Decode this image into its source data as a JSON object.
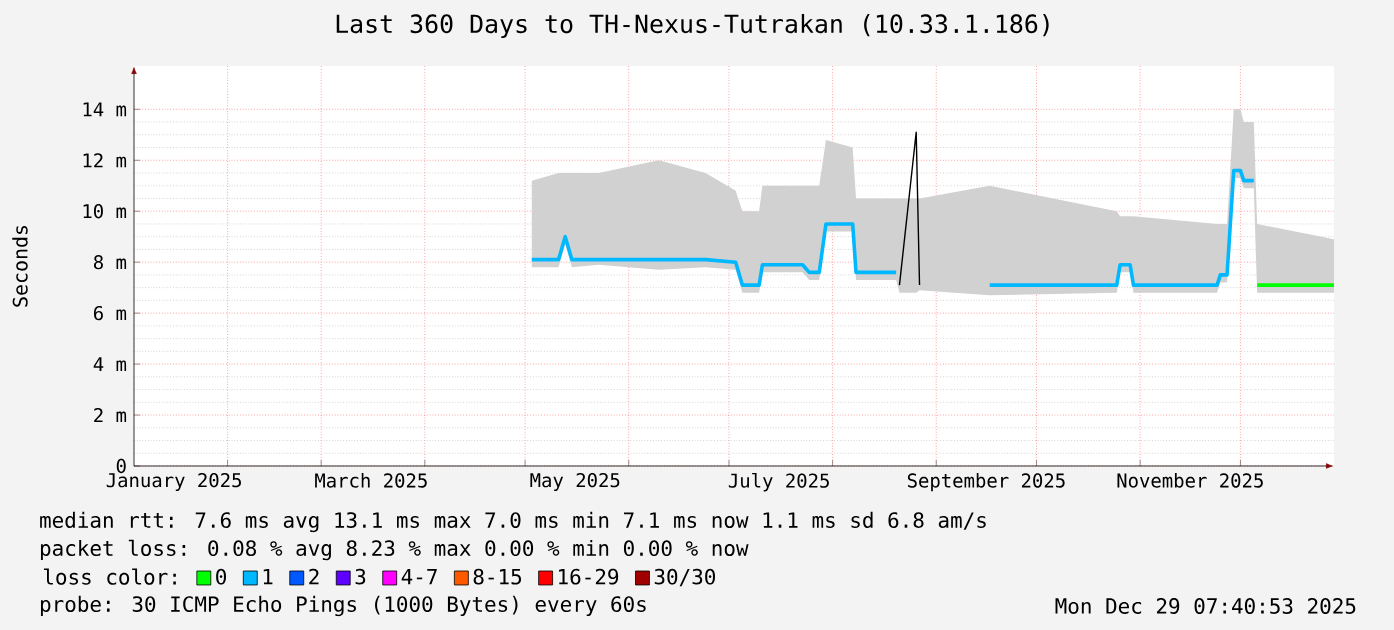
{
  "chart_data": {
    "type": "line",
    "title": "Last 360 Days to TH-Nexus-Tutrakan (10.33.1.186)",
    "ylabel": "Seconds",
    "x": [
      "2025-05-03",
      "2025-05-11",
      "2025-05-13",
      "2025-05-15",
      "2025-05-23",
      "2025-06-10",
      "2025-06-24",
      "2025-07-03",
      "2025-07-05",
      "2025-07-10",
      "2025-07-11",
      "2025-07-23",
      "2025-07-25",
      "2025-07-28",
      "2025-07-30",
      "2025-08-07",
      "2025-08-08",
      "2025-08-20",
      "2025-08-21",
      "2025-08-26",
      "2025-08-27",
      "2025-09-17",
      "2025-10-25",
      "2025-10-26",
      "2025-10-29",
      "2025-10-30",
      "2025-11-24",
      "2025-11-25",
      "2025-11-27",
      "2025-11-29",
      "2025-12-01",
      "2025-12-02",
      "2025-12-05",
      "2025-12-06",
      "2025-12-29"
    ],
    "xlim": [
      "2025-01-04",
      "2025-12-29"
    ],
    "ylim": [
      0,
      15.7
    ],
    "xticks": [
      {
        "value": "2025-02-01",
        "label": null
      },
      {
        "value": "2025-03-01",
        "label": null
      },
      {
        "value": "2025-04-01",
        "label": null
      },
      {
        "value": "2025-05-01",
        "label": null
      },
      {
        "value": "2025-06-01",
        "label": null
      },
      {
        "value": "2025-07-01",
        "label": null
      },
      {
        "value": "2025-08-01",
        "label": null
      },
      {
        "value": "2025-09-01",
        "label": null
      },
      {
        "value": "2025-10-01",
        "label": null
      },
      {
        "value": "2025-11-01",
        "label": null
      },
      {
        "value": "2025-12-01",
        "label": null
      },
      {
        "value": "2025-01-16",
        "label": "January 2025"
      },
      {
        "value": "2025-03-16",
        "label": "March 2025"
      },
      {
        "value": "2025-05-16",
        "label": "May 2025"
      },
      {
        "value": "2025-07-16",
        "label": "July 2025"
      },
      {
        "value": "2025-09-16",
        "label": "September 2025"
      },
      {
        "value": "2025-11-16",
        "label": "November 2025"
      }
    ],
    "yticks": [
      0,
      {
        "value": 2,
        "label": "2 m"
      },
      {
        "value": 4,
        "label": "4 m"
      },
      {
        "value": 6,
        "label": "6 m"
      },
      {
        "value": 8,
        "label": "8 m"
      },
      {
        "value": 10,
        "label": "10 m"
      },
      {
        "value": 12,
        "label": "12 m"
      },
      {
        "value": 14,
        "label": "14 m"
      }
    ],
    "grid": true,
    "legend": "bottom",
    "legend_title": "loss color:",
    "series": [
      {
        "color": "#000000",
        "values": [
          null,
          null,
          null,
          null,
          null,
          null,
          null,
          null,
          null,
          null,
          null,
          null,
          null,
          null,
          null,
          null,
          null,
          null,
          7.1,
          13.1,
          7.1,
          null,
          null,
          null,
          null,
          null,
          null,
          null,
          null,
          null,
          null,
          null,
          null,
          null,
          null
        ],
        "lower": [
          7.8,
          7.8,
          8.7,
          7.8,
          7.9,
          7.7,
          7.8,
          7.7,
          6.8,
          6.8,
          7.6,
          7.6,
          7.3,
          7.3,
          9.2,
          9.2,
          7.3,
          7.3,
          6.8,
          6.8,
          6.9,
          6.7,
          6.8,
          7.6,
          7.6,
          6.8,
          6.8,
          7.2,
          7.2,
          11.3,
          11.3,
          10.9,
          10.9,
          6.8,
          6.8
        ],
        "upper": [
          11.2,
          11.5,
          11.5,
          11.5,
          11.5,
          12.0,
          11.5,
          10.8,
          10.0,
          10.0,
          11.0,
          11.0,
          11.0,
          11.0,
          12.8,
          12.5,
          10.5,
          10.5,
          10.5,
          10.5,
          10.5,
          11.0,
          10.0,
          9.8,
          9.8,
          9.8,
          9.5,
          9.5,
          9.5,
          14.0,
          14.0,
          13.5,
          13.5,
          9.5,
          8.9
        ]
      },
      {
        "name": "0",
        "color": "#00ff00",
        "values": [
          null,
          null,
          null,
          null,
          null,
          null,
          null,
          null,
          null,
          null,
          null,
          null,
          null,
          null,
          null,
          null,
          null,
          null,
          null,
          null,
          null,
          null,
          null,
          null,
          null,
          null,
          null,
          null,
          null,
          null,
          null,
          null,
          null,
          7.1,
          7.1
        ]
      },
      {
        "name": "1",
        "color": "#00b8ff",
        "values": [
          8.1,
          8.1,
          9.0,
          8.1,
          8.1,
          8.1,
          8.1,
          8.0,
          7.1,
          7.1,
          7.9,
          7.9,
          7.6,
          7.6,
          9.5,
          9.5,
          7.6,
          7.6,
          null,
          null,
          null,
          7.1,
          7.1,
          7.9,
          7.9,
          7.1,
          7.1,
          7.5,
          7.5,
          11.6,
          11.6,
          11.2,
          11.2,
          null,
          null
        ]
      },
      {
        "name": "2",
        "color": "#0059ff",
        "values": [
          null,
          null,
          null,
          null,
          null,
          null,
          null,
          null,
          null,
          null,
          null,
          null,
          null,
          null,
          null,
          null,
          null,
          null,
          null,
          null,
          null,
          null,
          null,
          null,
          null,
          null,
          null,
          null,
          null,
          null,
          null,
          null,
          null,
          null,
          null
        ]
      },
      {
        "name": "3",
        "color": "#5e00ff",
        "values": [
          null,
          null,
          null,
          null,
          null,
          null,
          null,
          null,
          null,
          null,
          null,
          null,
          null,
          null,
          null,
          null,
          null,
          null,
          null,
          null,
          null,
          null,
          null,
          null,
          null,
          null,
          null,
          null,
          null,
          null,
          null,
          null,
          null,
          null,
          null
        ]
      },
      {
        "name": "4-7",
        "color": "#ff00ff",
        "values": [
          null,
          null,
          null,
          null,
          null,
          null,
          null,
          null,
          null,
          null,
          null,
          null,
          null,
          null,
          null,
          null,
          null,
          null,
          null,
          null,
          null,
          null,
          null,
          null,
          null,
          null,
          null,
          null,
          null,
          null,
          null,
          null,
          null,
          null,
          null
        ]
      },
      {
        "name": "8-15",
        "color": "#ff5900",
        "values": [
          null,
          null,
          null,
          null,
          null,
          null,
          null,
          null,
          null,
          null,
          null,
          null,
          null,
          null,
          null,
          null,
          null,
          null,
          null,
          null,
          null,
          null,
          null,
          null,
          null,
          null,
          null,
          null,
          null,
          null,
          null,
          null,
          null,
          null,
          null
        ]
      },
      {
        "name": "16-29",
        "color": "#ff0000",
        "values": [
          null,
          null,
          null,
          null,
          null,
          null,
          null,
          null,
          null,
          null,
          null,
          null,
          null,
          null,
          null,
          null,
          null,
          null,
          null,
          null,
          null,
          null,
          null,
          null,
          null,
          null,
          null,
          null,
          null,
          null,
          null,
          null,
          null,
          null,
          null
        ]
      },
      {
        "name": "30/30",
        "color": "#a00000",
        "values": [
          null,
          null,
          null,
          null,
          null,
          null,
          null,
          null,
          null,
          null,
          null,
          null,
          null,
          null,
          null,
          null,
          null,
          null,
          null,
          null,
          null,
          null,
          null,
          null,
          null,
          null,
          null,
          null,
          null,
          null,
          null,
          null,
          null,
          null,
          null
        ]
      }
    ],
    "annotations": [
      "median rtt: 7.6 ms avg 13.1 ms max 7.0 ms min 7.1 ms now 1.1 ms sd 6.8 am/s",
      "packet loss: 0.08 % avg 8.23 % max 0.00 % min 0.00 % now",
      "probe: 30 ICMP Echo Pings (1000 Bytes) every 60s",
      "Mon Dec 29 07:40:53 2025"
    ]
  }
}
